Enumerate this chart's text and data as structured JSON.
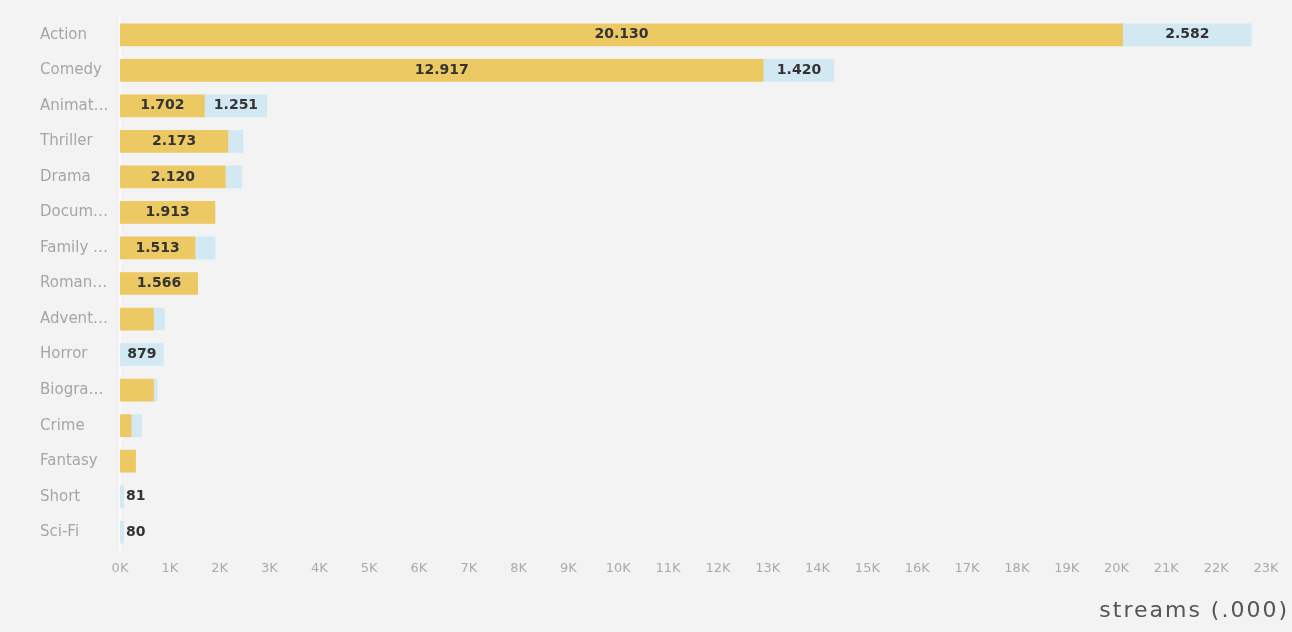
{
  "chart_data": {
    "type": "bar",
    "orientation": "horizontal",
    "stacked": true,
    "categories": [
      "Action",
      "Comedy",
      "Animat…",
      "Thriller",
      "Drama",
      "Docum…",
      "Family …",
      "Roman…",
      "Advent…",
      "Horror",
      "Biogra…",
      "Crime",
      "Fantasy",
      "Short",
      "Sci-Fi"
    ],
    "series": [
      {
        "color": "#ecc963",
        "values": [
          20130,
          12917,
          1702,
          2173,
          2120,
          1913,
          1513,
          1566,
          680,
          null,
          680,
          230,
          320,
          null,
          null
        ],
        "value_labels": [
          "20.130",
          "12.917",
          "1.702",
          "2.173",
          "2.120",
          "1.913",
          "1.513",
          "1.566",
          null,
          null,
          null,
          null,
          null,
          null,
          null
        ]
      },
      {
        "color": "#d2e8f2",
        "values": [
          2582,
          1420,
          1251,
          300,
          330,
          null,
          400,
          null,
          220,
          879,
          70,
          210,
          null,
          81,
          80
        ],
        "value_labels": [
          "2.582",
          "1.420",
          "1.251",
          null,
          null,
          null,
          null,
          null,
          null,
          "879",
          null,
          null,
          null,
          "81",
          "80"
        ]
      }
    ],
    "xlim": [
      0,
      23000
    ],
    "xticks": [
      {
        "value": 0,
        "label": "0K"
      },
      {
        "value": 1000,
        "label": "1K"
      },
      {
        "value": 2000,
        "label": "2K"
      },
      {
        "value": 3000,
        "label": "3K"
      },
      {
        "value": 4000,
        "label": "4K"
      },
      {
        "value": 5000,
        "label": "5K"
      },
      {
        "value": 6000,
        "label": "6K"
      },
      {
        "value": 7000,
        "label": "7K"
      },
      {
        "value": 8000,
        "label": "8K"
      },
      {
        "value": 9000,
        "label": "9K"
      },
      {
        "value": 10000,
        "label": "10K"
      },
      {
        "value": 11000,
        "label": "11K"
      },
      {
        "value": 12000,
        "label": "12K"
      },
      {
        "value": 13000,
        "label": "13K"
      },
      {
        "value": 14000,
        "label": "14K"
      },
      {
        "value": 15000,
        "label": "15K"
      },
      {
        "value": 16000,
        "label": "16K"
      },
      {
        "value": 17000,
        "label": "17K"
      },
      {
        "value": 18000,
        "label": "18K"
      },
      {
        "value": 19000,
        "label": "19K"
      },
      {
        "value": 20000,
        "label": "20K"
      },
      {
        "value": 21000,
        "label": "21K"
      },
      {
        "value": 22000,
        "label": "22K"
      },
      {
        "value": 23000,
        "label": "23K"
      }
    ],
    "xlabel": "streams (.000)"
  }
}
